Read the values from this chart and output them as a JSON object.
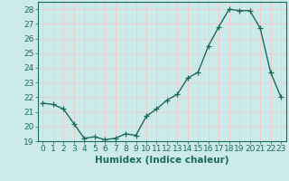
{
  "x": [
    0,
    1,
    2,
    3,
    4,
    5,
    6,
    7,
    8,
    9,
    10,
    11,
    12,
    13,
    14,
    15,
    16,
    17,
    18,
    19,
    20,
    21,
    22,
    23
  ],
  "y": [
    21.6,
    21.5,
    21.2,
    20.2,
    19.2,
    19.3,
    19.1,
    19.2,
    19.5,
    19.4,
    20.7,
    21.2,
    21.8,
    22.2,
    23.3,
    23.7,
    25.5,
    26.8,
    28.0,
    27.9,
    27.9,
    26.7,
    23.7,
    22.0
  ],
  "line_color": "#1a6b5a",
  "marker": "+",
  "markersize": 4,
  "linewidth": 1.0,
  "xlabel": "Humidex (Indice chaleur)",
  "tick_fontsize": 6.5,
  "xlabel_fontsize": 7.5,
  "xlim": [
    -0.5,
    23.5
  ],
  "ylim": [
    19,
    28.5
  ],
  "yticks": [
    19,
    20,
    21,
    22,
    23,
    24,
    25,
    26,
    27,
    28
  ],
  "xticks": [
    0,
    1,
    2,
    3,
    4,
    5,
    6,
    7,
    8,
    9,
    10,
    11,
    12,
    13,
    14,
    15,
    16,
    17,
    18,
    19,
    20,
    21,
    22,
    23
  ],
  "bg_color": "#cdeaea",
  "grid_color": "#f0c8c8",
  "axes_color": "#1a6b5a"
}
